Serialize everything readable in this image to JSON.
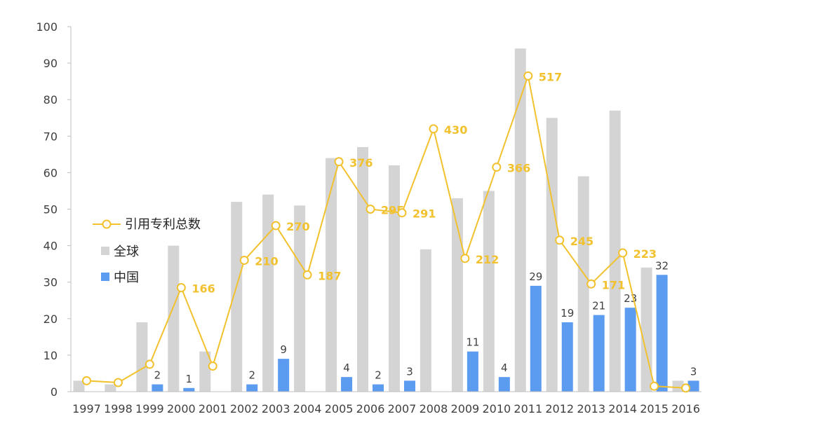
{
  "chart_data": {
    "type": "bar",
    "categories": [
      "1997",
      "1998",
      "1999",
      "2000",
      "2001",
      "2002",
      "2003",
      "2004",
      "2005",
      "2006",
      "2007",
      "2008",
      "2009",
      "2010",
      "2011",
      "2012",
      "2013",
      "2014",
      "2015",
      "2016"
    ],
    "ylim": [
      0,
      100
    ],
    "yticks": [
      0,
      10,
      20,
      30,
      40,
      50,
      60,
      70,
      80,
      90,
      100
    ],
    "series": [
      {
        "name": "全球",
        "kind": "bar",
        "color": "#d4d4d4",
        "values": [
          3,
          2,
          19,
          40,
          11,
          52,
          54,
          51,
          64,
          67,
          62,
          39,
          53,
          55,
          94,
          75,
          59,
          77,
          34,
          3
        ]
      },
      {
        "name": "中国",
        "kind": "bar",
        "color": "#5b9bf0",
        "values": [
          0,
          0,
          2,
          1,
          0,
          2,
          9,
          0,
          4,
          2,
          3,
          0,
          11,
          4,
          29,
          19,
          21,
          23,
          32,
          3
        ],
        "labels": [
          "",
          "",
          "2",
          "1",
          "",
          "2",
          "9",
          "",
          "4",
          "2",
          "3",
          "",
          "11",
          "4",
          "29",
          "19",
          "21",
          "23",
          "32",
          "3"
        ]
      },
      {
        "name": "引用专利总数",
        "kind": "line",
        "color": "#f2c12e",
        "values": [
          3,
          2.5,
          7.5,
          28.5,
          7,
          36,
          45.5,
          32,
          63,
          50,
          49,
          72,
          36.5,
          61.5,
          86.5,
          41.5,
          29.5,
          38,
          1.5,
          1
        ],
        "labels": [
          "",
          "",
          "",
          "166",
          "",
          "210",
          "270",
          "187",
          "376",
          "295",
          "291",
          "430",
          "212",
          "366",
          "517",
          "245",
          "171",
          "223",
          "",
          ""
        ]
      }
    ],
    "legend": {
      "placement": "left",
      "items": [
        "引用专利总数",
        "全球",
        "中国"
      ]
    },
    "grid": false
  }
}
